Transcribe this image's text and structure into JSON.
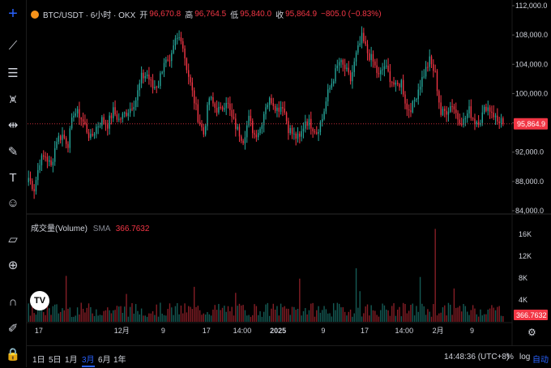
{
  "legend": {
    "symbol": "BTC/USDT · 6小时 · OKX",
    "open_label": "开",
    "open": "96,670.8",
    "high_label": "高",
    "high": "96,764.5",
    "low_label": "低",
    "low": "95,840.0",
    "close_label": "收",
    "close": "95,864.9",
    "change": "−805.0 (−0.83%)"
  },
  "volume_legend": {
    "name": "成交量(Volume)",
    "sma_label": "SMA",
    "sma_value": "366.7632"
  },
  "price_axis": {
    "ticks": [
      "112,000.0",
      "108,000.0",
      "104,000.0",
      "100,000.0",
      "96,000.0",
      "92,000.0",
      "88,000.0",
      "84,000.0"
    ],
    "last_price": "95,864.9"
  },
  "volume_axis": {
    "ticks": [
      "16K",
      "12K",
      "8K",
      "4K"
    ],
    "last_volume": "366.7632"
  },
  "time_axis": {
    "ticks": [
      "17",
      "12月",
      "9",
      "17",
      "14:00",
      "2025",
      "9",
      "17",
      "14:00",
      "2月",
      "9"
    ]
  },
  "toolbar": {
    "icons": [
      "crosshair-icon",
      "trend-line-icon",
      "fib-retracement-icon",
      "pattern-icon",
      "prediction-icon",
      "brush-icon",
      "text-icon",
      "emoji-icon",
      "ruler-icon",
      "zoom-in-icon",
      "magnet-icon",
      "lock-drawing-icon",
      "pencil-lock-icon",
      "lock-icon"
    ]
  },
  "bottom_bar": {
    "ranges": [
      "1日",
      "5日",
      "1月",
      "3月",
      "6月",
      "1年"
    ],
    "active_range": "3月",
    "time": "14:48:36 (UTC+8)",
    "percent": "%",
    "log": "log",
    "auto": "自动"
  },
  "colors": {
    "up": "#26a69a",
    "down": "#f23645",
    "background": "#000000",
    "accent": "#2962ff"
  },
  "chart_data": [
    {
      "type": "candlestick",
      "instrument": "BTC/USDT",
      "interval": "6h",
      "ylim": [
        84000,
        112000
      ],
      "last_close": 95864.9,
      "path": [
        [
          0,
          88500
        ],
        [
          3,
          87000
        ],
        [
          6,
          90800
        ],
        [
          9,
          91500
        ],
        [
          12,
          90000
        ],
        [
          15,
          93800
        ],
        [
          18,
          94300
        ],
        [
          21,
          93200
        ],
        [
          24,
          97500
        ],
        [
          27,
          97100
        ],
        [
          30,
          95600
        ],
        [
          33,
          93800
        ],
        [
          36,
          95400
        ],
        [
          39,
          96400
        ],
        [
          42,
          95800
        ],
        [
          45,
          97600
        ],
        [
          48,
          96400
        ],
        [
          51,
          97200
        ],
        [
          54,
          98000
        ],
        [
          57,
          99200
        ],
        [
          60,
          102200
        ],
        [
          63,
          102600
        ],
        [
          66,
          100800
        ],
        [
          69,
          101400
        ],
        [
          72,
          104500
        ],
        [
          75,
          103800
        ],
        [
          78,
          107200
        ],
        [
          81,
          107800
        ],
        [
          84,
          103600
        ],
        [
          87,
          100100
        ],
        [
          90,
          96800
        ],
        [
          93,
          94500
        ],
        [
          96,
          99400
        ],
        [
          99,
          98100
        ],
        [
          102,
          97600
        ],
        [
          105,
          99200
        ],
        [
          108,
          96600
        ],
        [
          111,
          95000
        ],
        [
          114,
          93800
        ],
        [
          117,
          96500
        ],
        [
          120,
          94400
        ],
        [
          123,
          95200
        ],
        [
          126,
          98500
        ],
        [
          129,
          99200
        ],
        [
          132,
          97900
        ],
        [
          135,
          98500
        ],
        [
          138,
          95300
        ],
        [
          141,
          94200
        ],
        [
          144,
          93800
        ],
        [
          147,
          96400
        ],
        [
          150,
          95800
        ],
        [
          153,
          94800
        ],
        [
          156,
          96600
        ],
        [
          159,
          100000
        ],
        [
          162,
          102200
        ],
        [
          165,
          104300
        ],
        [
          168,
          103400
        ],
        [
          171,
          101800
        ],
        [
          174,
          105200
        ],
        [
          177,
          107600
        ],
        [
          180,
          105600
        ],
        [
          183,
          104300
        ],
        [
          186,
          102300
        ],
        [
          189,
          103800
        ],
        [
          192,
          102200
        ],
        [
          195,
          100800
        ],
        [
          198,
          101600
        ],
        [
          201,
          97800
        ],
        [
          204,
          98300
        ],
        [
          207,
          100700
        ],
        [
          210,
          102700
        ],
        [
          213,
          104500
        ],
        [
          216,
          102600
        ],
        [
          219,
          97200
        ],
        [
          222,
          97700
        ],
        [
          225,
          98600
        ],
        [
          228,
          96700
        ],
        [
          231,
          96200
        ],
        [
          234,
          97700
        ],
        [
          237,
          96200
        ],
        [
          240,
          96500
        ],
        [
          243,
          98300
        ],
        [
          246,
          97600
        ],
        [
          249,
          96200
        ],
        [
          252,
          96600
        ]
      ]
    },
    {
      "type": "bar",
      "series": "成交量(Volume)",
      "ylim": [
        0,
        17500
      ],
      "sma": 366.7632,
      "spikes": [
        [
          20,
          8400
        ],
        [
          88,
          6400
        ],
        [
          144,
          7900
        ],
        [
          174,
          9800
        ],
        [
          208,
          8200
        ],
        [
          216,
          17000
        ],
        [
          226,
          6100
        ],
        [
          176,
          5600
        ],
        [
          110,
          5300
        ],
        [
          52,
          5100
        ]
      ]
    }
  ]
}
